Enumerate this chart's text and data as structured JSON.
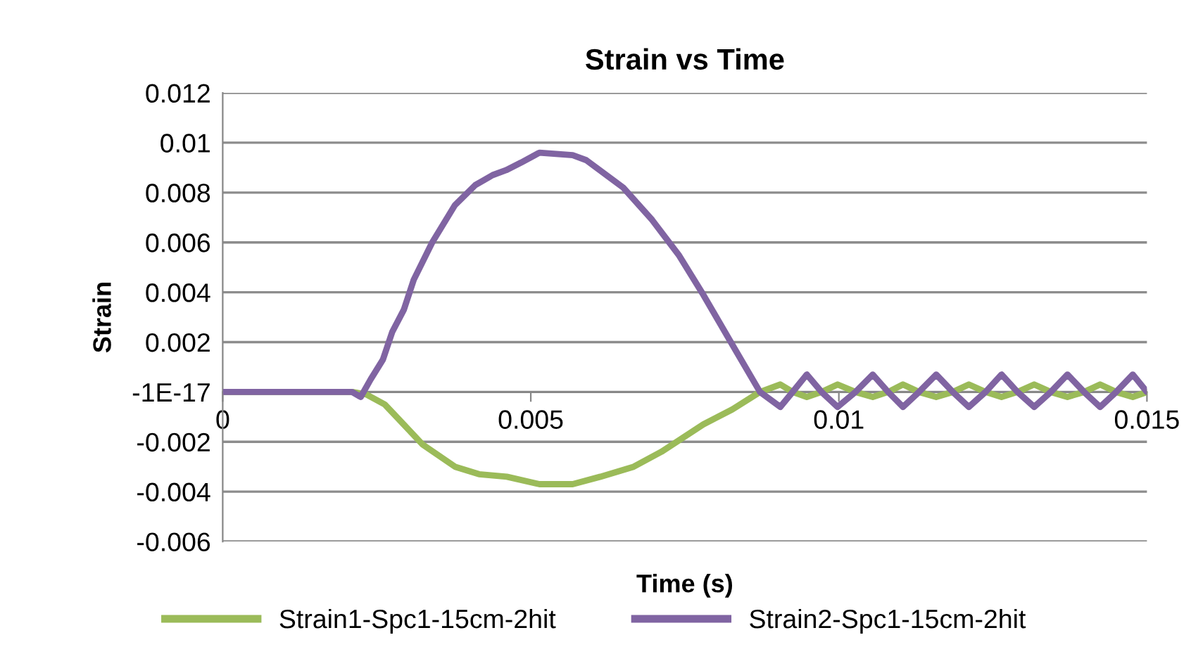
{
  "chart_data": {
    "type": "line",
    "title": "Strain vs Time",
    "xlabel": "Time (s)",
    "ylabel": "Strain",
    "xlim": [
      0,
      0.015
    ],
    "xticks": [
      0,
      0.005,
      0.01,
      0.015
    ],
    "ylim": [
      -0.006,
      0.012
    ],
    "yticks": [
      -0.006,
      -0.004,
      -0.002,
      {
        "value": 0,
        "label": "-1E-17"
      },
      0.002,
      0.004,
      0.006,
      0.008,
      0.01,
      0.012
    ],
    "grid": "y",
    "legend": "bottom",
    "marker": "none",
    "line_style": "solid",
    "series": [
      {
        "name": "Strain1-Spc1-15cm-2hit",
        "color": "#9bbb59",
        "x": [
          0,
          0.0021,
          0.00233,
          0.00263,
          0.00286,
          0.00324,
          0.00377,
          0.00416,
          0.00461,
          0.00514,
          0.00568,
          0.00613,
          0.00667,
          0.00712,
          0.0078,
          0.00827,
          0.00872,
          0.00905,
          0.00925,
          0.00948,
          0.00972,
          0.00998,
          0.01027,
          0.01055,
          0.0108,
          0.01104,
          0.0113,
          0.01158,
          0.01185,
          0.01211,
          0.01238,
          0.01264,
          0.0129,
          0.01317,
          0.01344,
          0.01371,
          0.01398,
          0.01424,
          0.0145,
          0.01477,
          0.015
        ],
        "values": [
          0,
          0,
          -0.0001,
          -0.0005,
          -0.0011,
          -0.0021,
          -0.003,
          -0.0033,
          -0.0034,
          -0.0037,
          -0.0037,
          -0.0034,
          -0.003,
          -0.0024,
          -0.0013,
          -0.0007,
          0,
          0.0003,
          0,
          -0.0002,
          0,
          0.0003,
          0,
          -0.0002,
          0,
          0.0003,
          0,
          -0.0002,
          0,
          0.0003,
          0,
          -0.0002,
          0,
          0.0003,
          0,
          -0.0002,
          0,
          0.0003,
          0,
          -0.0002,
          0
        ]
      },
      {
        "name": "Strain2-Spc1-15cm-2hit",
        "color": "#8064a2",
        "x": [
          0,
          0.0021,
          0.00224,
          0.0024,
          0.0026,
          0.00275,
          0.00294,
          0.0031,
          0.0034,
          0.00377,
          0.0041,
          0.00438,
          0.0046,
          0.00484,
          0.00514,
          0.00568,
          0.0059,
          0.0065,
          0.00697,
          0.0074,
          0.0078,
          0.00827,
          0.00872,
          0.00905,
          0.00925,
          0.00948,
          0.00972,
          0.00998,
          0.01027,
          0.01055,
          0.0108,
          0.01104,
          0.0113,
          0.01158,
          0.01185,
          0.01211,
          0.01238,
          0.01264,
          0.0129,
          0.01317,
          0.01344,
          0.01371,
          0.01398,
          0.01424,
          0.0145,
          0.01477,
          0.015
        ],
        "values": [
          0,
          0,
          -0.0002,
          0.0005,
          0.0013,
          0.0024,
          0.0033,
          0.0045,
          0.006,
          0.0075,
          0.0083,
          0.0087,
          0.0089,
          0.0092,
          0.0096,
          0.0095,
          0.0093,
          0.0082,
          0.0069,
          0.0055,
          0.0039,
          0.0019,
          0,
          -0.0006,
          0,
          0.0007,
          0,
          -0.0006,
          0,
          0.0007,
          0,
          -0.0006,
          0,
          0.0007,
          0,
          -0.0006,
          0,
          0.0007,
          0,
          -0.0006,
          0,
          0.0007,
          0,
          -0.0006,
          0,
          0.0007,
          0
        ]
      }
    ]
  }
}
